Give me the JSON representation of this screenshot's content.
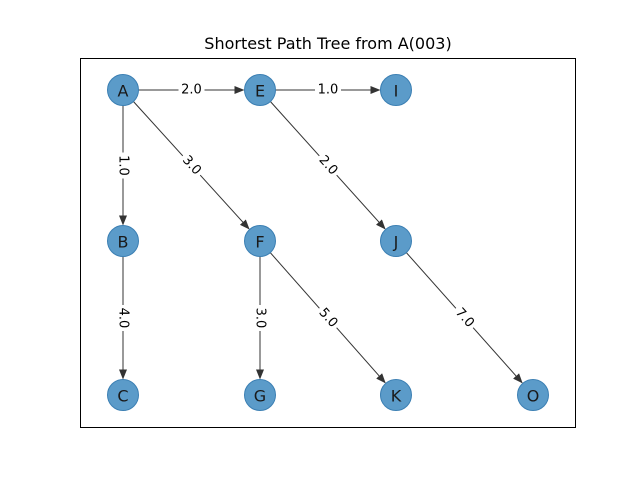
{
  "title": "Shortest Path Tree from A(003)",
  "colors": {
    "node_fill": "#5b9bc9",
    "node_stroke": "#3b7fb3",
    "edge": "#333333",
    "frame": "#000000"
  },
  "nodes": [
    {
      "id": "A",
      "label": "A"
    },
    {
      "id": "E",
      "label": "E"
    },
    {
      "id": "I",
      "label": "I"
    },
    {
      "id": "B",
      "label": "B"
    },
    {
      "id": "F",
      "label": "F"
    },
    {
      "id": "J",
      "label": "J"
    },
    {
      "id": "C",
      "label": "C"
    },
    {
      "id": "G",
      "label": "G"
    },
    {
      "id": "K",
      "label": "K"
    },
    {
      "id": "O",
      "label": "O"
    }
  ],
  "edges": [
    {
      "from": "A",
      "to": "E",
      "weight": "2.0"
    },
    {
      "from": "E",
      "to": "I",
      "weight": "1.0"
    },
    {
      "from": "A",
      "to": "B",
      "weight": "1.0"
    },
    {
      "from": "A",
      "to": "F",
      "weight": "3.0"
    },
    {
      "from": "E",
      "to": "J",
      "weight": "2.0"
    },
    {
      "from": "B",
      "to": "C",
      "weight": "4.0"
    },
    {
      "from": "F",
      "to": "G",
      "weight": "3.0"
    },
    {
      "from": "F",
      "to": "K",
      "weight": "5.0"
    },
    {
      "from": "J",
      "to": "O",
      "weight": "7.0"
    }
  ]
}
